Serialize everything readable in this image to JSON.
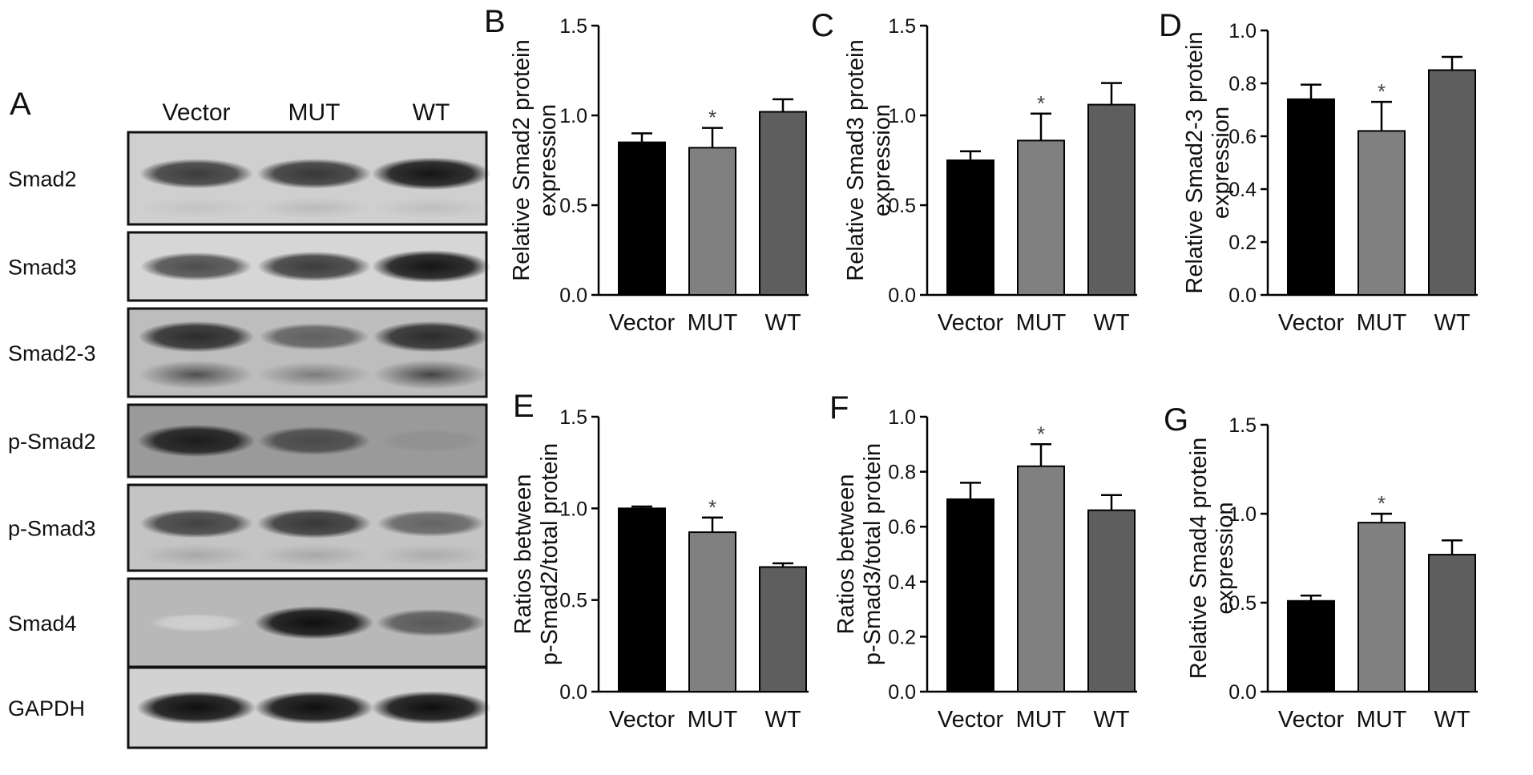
{
  "blot": {
    "panel_label": "A",
    "lanes": [
      "Vector",
      "MUT",
      "WT"
    ],
    "rows": [
      {
        "label": "Smad2",
        "band_intensity": [
          0.78,
          0.8,
          0.95
        ],
        "background": "#cfcfcf",
        "second_band": [
          0.18,
          0.22,
          0.2
        ]
      },
      {
        "label": "Smad3",
        "band_intensity": [
          0.7,
          0.78,
          0.95
        ],
        "background": "#d6d6d6",
        "second_band": [
          0,
          0,
          0
        ]
      },
      {
        "label": "Smad2-3",
        "band_intensity": [
          0.85,
          0.62,
          0.85
        ],
        "background": "#bdbdbd",
        "second_band": [
          0.7,
          0.5,
          0.75
        ]
      },
      {
        "label": "p-Smad2",
        "band_intensity": [
          0.92,
          0.72,
          0.4
        ],
        "background": "#9a9a9a",
        "second_band": [
          0,
          0,
          0
        ]
      },
      {
        "label": "p-Smad3",
        "band_intensity": [
          0.75,
          0.8,
          0.6
        ],
        "background": "#c4c4c4",
        "second_band": [
          0.3,
          0.3,
          0.28
        ]
      },
      {
        "label": "Smad4",
        "band_intensity": [
          0.12,
          0.98,
          0.65
        ],
        "background": "#b8b8b8",
        "second_band": [
          0,
          0,
          0
        ]
      },
      {
        "label": "GAPDH",
        "band_intensity": [
          0.98,
          0.98,
          0.98
        ],
        "background": "#d2d2d2",
        "second_band": [
          0,
          0,
          0
        ]
      }
    ]
  },
  "chart_data": [
    {
      "panel": "B",
      "type": "bar",
      "categories": [
        "Vector",
        "MUT",
        "WT"
      ],
      "values": [
        0.85,
        0.82,
        1.02
      ],
      "errors": [
        0.05,
        0.11,
        0.07
      ],
      "significance": [
        "",
        "*",
        ""
      ],
      "ylabel_lines": [
        "Relative Smad2 protein",
        "expression"
      ],
      "ylim": [
        0,
        1.5
      ],
      "yticks": [
        "0.0",
        "0.5",
        "1.0",
        "1.5"
      ]
    },
    {
      "panel": "C",
      "type": "bar",
      "categories": [
        "Vector",
        "MUT",
        "WT"
      ],
      "values": [
        0.75,
        0.86,
        1.06
      ],
      "errors": [
        0.05,
        0.15,
        0.12
      ],
      "significance": [
        "",
        "*",
        ""
      ],
      "ylabel_lines": [
        "Relative Smad3 protein",
        "expression"
      ],
      "ylim": [
        0,
        1.5
      ],
      "yticks": [
        "0.0",
        "0.5",
        "1.0",
        "1.5"
      ]
    },
    {
      "panel": "D",
      "type": "bar",
      "categories": [
        "Vector",
        "MUT",
        "WT"
      ],
      "values": [
        0.74,
        0.62,
        0.85
      ],
      "errors": [
        0.055,
        0.11,
        0.05
      ],
      "significance": [
        "",
        "*",
        ""
      ],
      "ylabel_lines": [
        "Relative Smad2-3 protein",
        "expression"
      ],
      "ylim": [
        0,
        1.0
      ],
      "yticks": [
        "0.0",
        "0.2",
        "0.4",
        "0.6",
        "0.8",
        "1.0"
      ]
    },
    {
      "panel": "E",
      "type": "bar",
      "categories": [
        "Vector",
        "MUT",
        "WT"
      ],
      "values": [
        1.0,
        0.87,
        0.68
      ],
      "errors": [
        0.01,
        0.08,
        0.02
      ],
      "significance": [
        "",
        "*",
        ""
      ],
      "ylabel_lines": [
        "Ratios between",
        "p-Smad2/total protein"
      ],
      "ylim": [
        0,
        1.5
      ],
      "yticks": [
        "0.0",
        "0.5",
        "1.0",
        "1.5"
      ]
    },
    {
      "panel": "F",
      "type": "bar",
      "categories": [
        "Vector",
        "MUT",
        "WT"
      ],
      "values": [
        0.7,
        0.82,
        0.66
      ],
      "errors": [
        0.06,
        0.08,
        0.055
      ],
      "significance": [
        "",
        "*",
        ""
      ],
      "ylabel_lines": [
        "Ratios between",
        "p-Smad3/total protein"
      ],
      "ylim": [
        0,
        1.0
      ],
      "yticks": [
        "0.0",
        "0.2",
        "0.4",
        "0.6",
        "0.8",
        "1.0"
      ]
    },
    {
      "panel": "G",
      "type": "bar",
      "categories": [
        "Vector",
        "MUT",
        "WT"
      ],
      "values": [
        0.51,
        0.95,
        0.77
      ],
      "errors": [
        0.03,
        0.05,
        0.08
      ],
      "significance": [
        "",
        "*",
        ""
      ],
      "ylabel_lines": [
        "Relative Smad4 protein",
        "expression"
      ],
      "ylim": [
        0,
        1.5
      ],
      "yticks": [
        "0.0",
        "0.5",
        "1.0",
        "1.5"
      ]
    }
  ],
  "colors": {
    "vector_bar": "#000000",
    "mut_bar": "#808080",
    "wt_bar": "#5e5e5e",
    "axis": "#000000",
    "significance": "#444444"
  }
}
